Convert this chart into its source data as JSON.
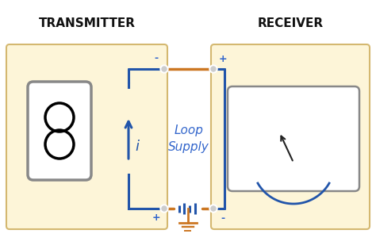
{
  "bg_color": "#ffffff",
  "box_fill": "#fdf5d8",
  "box_edge": "#d4b870",
  "wire_orange": "#cc7722",
  "wire_blue": "#2255aa",
  "text_blue": "#3366cc",
  "text_black": "#111111",
  "title_transmitter": "TRANSMITTER",
  "title_receiver": "RECEIVER",
  "label_loop_supply": "Loop\nSupply",
  "label_i": "i",
  "dot_color": "#dddddd",
  "sensor_edge": "#888888",
  "meter_edge": "#888888",
  "needle_color": "#222222",
  "battery_color": "#2255aa",
  "ground_color": "#cc7722"
}
